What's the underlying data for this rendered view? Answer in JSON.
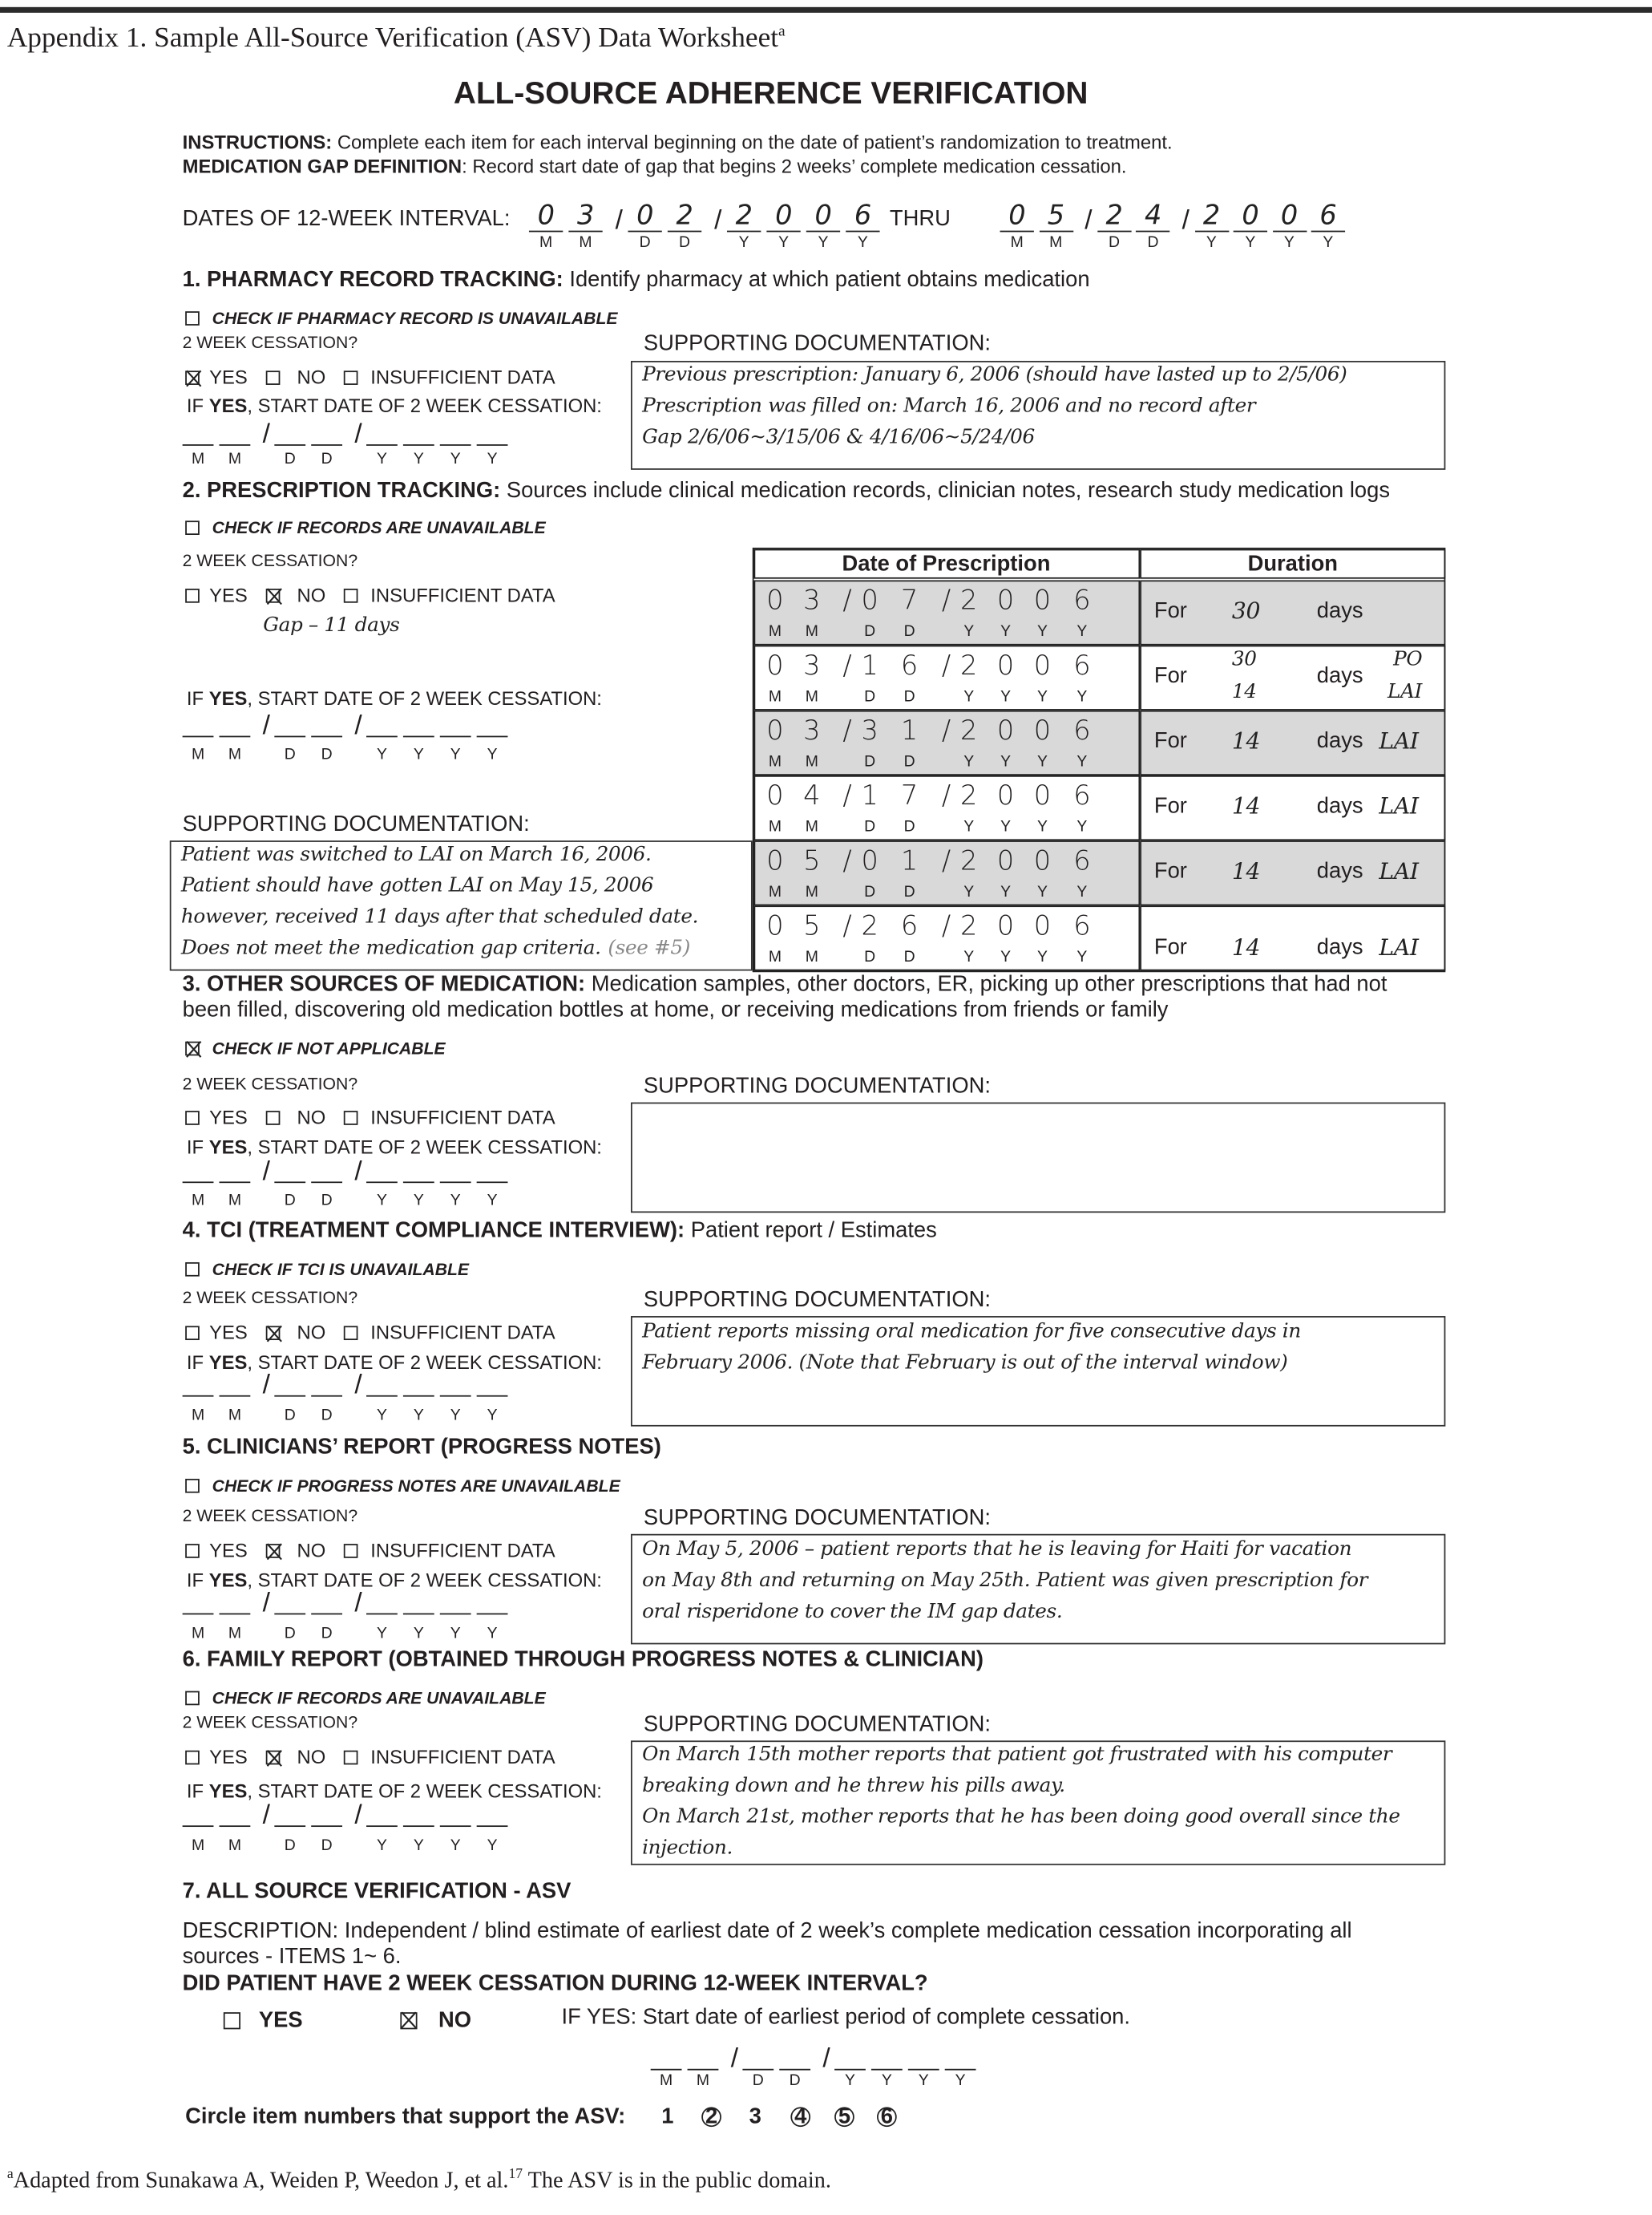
{
  "appendix_title": "Appendix 1. Sample All-Source Verification (ASV) Data Worksheet",
  "appendix_sup": "a",
  "form_title": "ALL-SOURCE ADHERENCE VERIFICATION",
  "instructions": {
    "label": "INSTRUCTIONS:",
    "text": " Complete each item for each interval beginning on the date of patient’s randomization to treatment.",
    "gap_label": "MEDICATION GAP DEFINITION",
    "gap_text": ": Record start date of gap that begins 2 weeks’ complete medication cessation."
  },
  "interval": {
    "label": "DATES OF 12-WEEK INTERVAL:",
    "thru": "THRU",
    "start": [
      "0",
      "3",
      "0",
      "2",
      "2",
      "0",
      "0",
      "6"
    ],
    "end": [
      "0",
      "5",
      "2",
      "4",
      "2",
      "0",
      "0",
      "6"
    ]
  },
  "date_labels": [
    "M",
    "M",
    "D",
    "D",
    "Y",
    "Y",
    "Y",
    "Y"
  ],
  "date_slash": "/",
  "common": {
    "cessation_q": "2 WEEK CESSATION?",
    "yes": "YES",
    "no": "NO",
    "insufficient": "INSUFFICIENT DATA",
    "if_prefix": "IF ",
    "if_bold": "YES",
    "if_suffix": ", START DATE OF 2 WEEK CESSATION:",
    "supporting": "SUPPORTING DOCUMENTATION:"
  },
  "sections": [
    {
      "heading_bold": "1. PHARMACY RECORD TRACKING:",
      "heading_text": " Identify pharmacy at which patient obtains medication",
      "check_label": "CHECK IF PHARMACY RECORD IS UNAVAILABLE",
      "check_checked": false,
      "answer": "yes",
      "notes": [
        "Previous prescription: January 6, 2006 (should have lasted up to 2/5/06)",
        "Prescription was filled on: March 16, 2006 and no record after",
        "Gap 2/6/06~3/15/06 & 4/16/06~5/24/06"
      ]
    },
    {
      "heading_bold": "2. PRESCRIPTION TRACKING:",
      "heading_text": " Sources include clinical medication records, clinician notes, research study medication logs",
      "check_label": "CHECK IF RECORDS ARE UNAVAILABLE",
      "check_checked": false,
      "answer": "no",
      "answer_note": "Gap – 11 days",
      "notes": [
        "Patient was switched to LAI on March 16, 2006.",
        "Patient should have gotten LAI on May 15, 2006",
        "however, received 11 days after that scheduled date.",
        "Does not meet the medication gap criteria."
      ],
      "see_ref": "(see #5)"
    },
    {
      "heading_bold": "3. OTHER SOURCES OF MEDICATION:",
      "heading_text": " Medication samples, other doctors, ER, picking up other prescriptions that had not",
      "heading_text2": "been filled, discovering old medication bottles at home, or receiving medications from friends or family",
      "check_label": "CHECK IF NOT APPLICABLE",
      "check_checked": true,
      "answer": "",
      "notes": []
    },
    {
      "heading_bold": "4. TCI (TREATMENT COMPLIANCE INTERVIEW):",
      "heading_text": " Patient report / Estimates",
      "check_label": "CHECK IF TCI IS UNAVAILABLE",
      "check_checked": false,
      "answer": "no",
      "notes": [
        "Patient reports missing oral medication for five consecutive days in",
        "February 2006. (Note that February is out of the interval window)"
      ]
    },
    {
      "heading_bold": "5. CLINICIANS’ REPORT (PROGRESS NOTES)",
      "heading_text": "",
      "check_label": "CHECK IF PROGRESS NOTES ARE UNAVAILABLE",
      "check_checked": false,
      "answer": "no",
      "notes": [
        "On May 5, 2006 – patient reports that he is leaving for Haiti for vacation",
        "on May 8th and returning on May 25th. Patient was given prescription for",
        "oral risperidone to cover the IM gap dates."
      ]
    },
    {
      "heading_bold": "6. FAMILY REPORT (OBTAINED THROUGH PROGRESS NOTES & CLINICIAN)",
      "heading_text": "",
      "check_label": "CHECK IF RECORDS ARE UNAVAILABLE",
      "check_checked": false,
      "answer": "no",
      "notes": [
        "On March 15th mother reports that patient got frustrated with his computer",
        "breaking down and he threw his pills away.",
        "On March 21st, mother reports that he has been doing good overall since the",
        "injection."
      ]
    }
  ],
  "prescriptions": {
    "headers": [
      "Date of Prescription",
      "Duration"
    ],
    "rows": [
      {
        "date": [
          "0",
          "3",
          "0",
          "7",
          "2",
          "0",
          "0",
          "6"
        ],
        "for": "For",
        "days": [
          "30"
        ],
        "unit": "days",
        "type": [
          ""
        ],
        "shaded": true
      },
      {
        "date": [
          "0",
          "3",
          "1",
          "6",
          "2",
          "0",
          "0",
          "6"
        ],
        "for": "For",
        "days": [
          "30",
          "14"
        ],
        "unit": "days",
        "type": [
          "PO",
          "LAI"
        ],
        "shaded": false
      },
      {
        "date": [
          "0",
          "3",
          "3",
          "1",
          "2",
          "0",
          "0",
          "6"
        ],
        "for": "For",
        "days": [
          "14"
        ],
        "unit": "days",
        "type": [
          "LAI"
        ],
        "shaded": true
      },
      {
        "date": [
          "0",
          "4",
          "1",
          "7",
          "2",
          "0",
          "0",
          "6"
        ],
        "for": "For",
        "days": [
          "14"
        ],
        "unit": "days",
        "type": [
          "LAI"
        ],
        "shaded": false
      },
      {
        "date": [
          "0",
          "5",
          "0",
          "1",
          "2",
          "0",
          "0",
          "6"
        ],
        "for": "For",
        "days": [
          "14"
        ],
        "unit": "days",
        "type": [
          "LAI"
        ],
        "shaded": true
      },
      {
        "date": [
          "0",
          "5",
          "2",
          "6",
          "2",
          "0",
          "0",
          "6"
        ],
        "for": "For",
        "days": [
          "14"
        ],
        "unit": "days",
        "type": [
          "LAI"
        ],
        "shaded": false
      }
    ],
    "shade_color": "#d9d9d9"
  },
  "asv": {
    "heading": "7. ALL SOURCE VERIFICATION - ASV",
    "description1": "DESCRIPTION:  Independent / blind estimate of earliest date of 2 week’s complete medication cessation incorporating all",
    "description2": "sources - ITEMS 1~ 6.",
    "question": "DID PATIENT HAVE 2 WEEK CESSATION DURING 12-WEEK INTERVAL?",
    "yes": "YES",
    "no": "NO",
    "answer": "no",
    "if_yes_text": "IF YES: Start date of earliest period of complete cessation.",
    "circle_label": "Circle item numbers that support the ASV:",
    "items": [
      {
        "n": "1",
        "circled": false
      },
      {
        "n": "2",
        "circled": true
      },
      {
        "n": "3",
        "circled": false
      },
      {
        "n": "4",
        "circled": true
      },
      {
        "n": "5",
        "circled": true
      },
      {
        "n": "6",
        "circled": true
      }
    ]
  },
  "footnote_sup": "a",
  "footnote": "Adapted from Sunakawa A, Weiden P, Weedon J, et al.",
  "footnote_ref": "17",
  "footnote_end": " The ASV is in the public domain."
}
